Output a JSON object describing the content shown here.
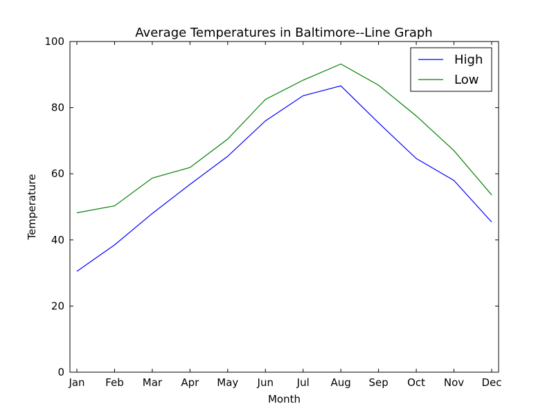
{
  "chart_data": {
    "type": "line",
    "title": "Average Temperatures in Baltimore--Line Graph",
    "xlabel": "Month",
    "ylabel": "Temperature",
    "categories": [
      "Jan",
      "Feb",
      "Mar",
      "Apr",
      "May",
      "Jun",
      "Jul",
      "Aug",
      "Sep",
      "Oct",
      "Nov",
      "Dec"
    ],
    "ylim": [
      0,
      100
    ],
    "yticks": [
      0,
      20,
      40,
      60,
      80,
      100
    ],
    "grid": false,
    "legend_position": "top-right",
    "series": [
      {
        "name": "High",
        "color": "#0000ff",
        "values": [
          30.5,
          38.5,
          48.0,
          56.8,
          65.3,
          76.0,
          83.6,
          86.6,
          75.4,
          64.6,
          58.0,
          45.4
        ]
      },
      {
        "name": "Low",
        "color": "#008000",
        "values": [
          48.2,
          50.3,
          58.7,
          61.9,
          70.5,
          82.5,
          88.3,
          93.2,
          86.8,
          77.5,
          67.0,
          53.6
        ]
      }
    ]
  }
}
